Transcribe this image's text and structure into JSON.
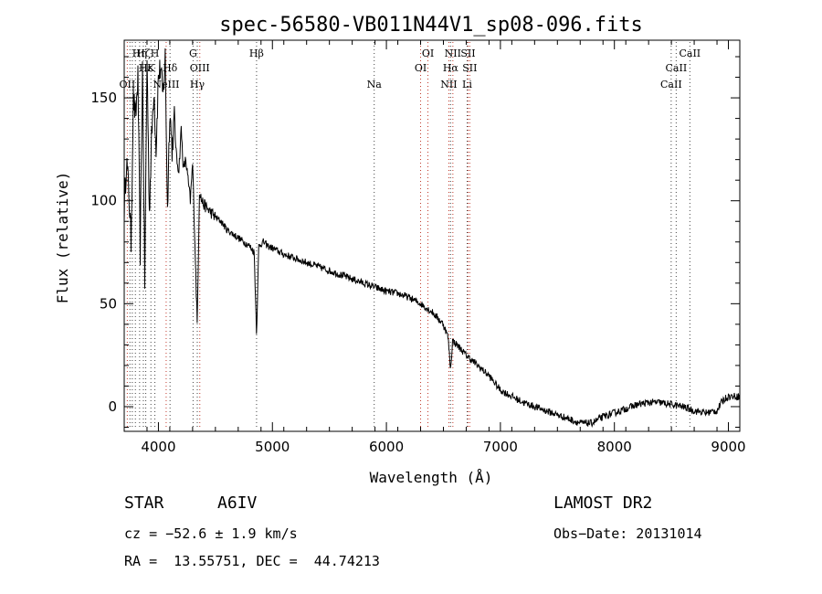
{
  "chart_data": {
    "type": "line",
    "title": "spec-56580-VB011N44V1_sp08-096.fits",
    "xlabel": "Wavelength (Å)",
    "ylabel": "Flux (relative)",
    "xlim": [
      3700,
      9100
    ],
    "ylim": [
      -12,
      178
    ],
    "xticks": [
      4000,
      5000,
      6000,
      7000,
      8000,
      9000
    ],
    "yticks": [
      0,
      50,
      100,
      150
    ],
    "grid": false,
    "line_color": "#000000",
    "marker_color_blue": "#c0392b",
    "spectrum": {
      "x": [
        3700,
        3720,
        3740,
        3760,
        3780,
        3800,
        3820,
        3840,
        3860,
        3880,
        3900,
        3920,
        3940,
        3960,
        3980,
        4000,
        4020,
        4040,
        4060,
        4080,
        4100,
        4120,
        4140,
        4160,
        4180,
        4200,
        4220,
        4240,
        4260,
        4280,
        4300,
        4320,
        4340,
        4360,
        4380,
        4400,
        4450,
        4500,
        4550,
        4600,
        4650,
        4700,
        4750,
        4800,
        4840,
        4861,
        4880,
        4920,
        4960,
        5000,
        5100,
        5200,
        5300,
        5400,
        5500,
        5600,
        5700,
        5800,
        5900,
        6000,
        6100,
        6200,
        6300,
        6400,
        6500,
        6540,
        6563,
        6580,
        6620,
        6700,
        6800,
        6900,
        7000,
        7100,
        7200,
        7300,
        7400,
        7500,
        7600,
        7700,
        7800,
        7900,
        8000,
        8100,
        8200,
        8300,
        8400,
        8500,
        8600,
        8700,
        8800,
        8900,
        8950,
        9000
      ],
      "y": [
        95,
        120,
        105,
        80,
        150,
        140,
        160,
        75,
        165,
        60,
        170,
        95,
        130,
        155,
        125,
        160,
        165,
        150,
        170,
        95,
        145,
        125,
        140,
        120,
        115,
        135,
        115,
        120,
        110,
        100,
        118,
        80,
        40,
        105,
        100,
        98,
        95,
        92,
        90,
        86,
        84,
        82,
        80,
        78,
        75,
        35,
        78,
        80,
        78,
        77,
        74,
        72,
        70,
        68,
        66,
        64,
        62,
        60,
        58,
        56,
        55,
        53,
        50,
        46,
        40,
        34,
        18,
        32,
        30,
        25,
        20,
        15,
        8,
        5,
        2,
        0,
        -2,
        -4,
        -6,
        -8,
        -8,
        -5,
        -3,
        -1,
        1,
        2,
        2,
        1,
        0,
        -2,
        -3,
        -2,
        3,
        5
      ]
    },
    "lines": [
      {
        "wavelength": 3727,
        "label": "OII",
        "row": 3,
        "kind": "emission"
      },
      {
        "wavelength": 3750,
        "label": "",
        "row": 0,
        "kind": "absorption"
      },
      {
        "wavelength": 3771,
        "label": "",
        "row": 0,
        "kind": "absorption"
      },
      {
        "wavelength": 3798,
        "label": "",
        "row": 0,
        "kind": "absorption"
      },
      {
        "wavelength": 3835,
        "label": "Hη",
        "row": 1,
        "kind": "absorption"
      },
      {
        "wavelength": 3868,
        "label": "Hζ",
        "row": 1,
        "kind": "absorption"
      },
      {
        "wavelength": 3889,
        "label": "Hε",
        "row": 2,
        "kind": "absorption"
      },
      {
        "wavelength": 3934,
        "label": "K",
        "row": 2,
        "kind": "absorption"
      },
      {
        "wavelength": 3969,
        "label": "H",
        "row": 1,
        "kind": "absorption"
      },
      {
        "wavelength": 4102,
        "label": "Hδ",
        "row": 2,
        "kind": "absorption"
      },
      {
        "wavelength": 4068,
        "label": "NeIII",
        "row": 3,
        "kind": "emission"
      },
      {
        "wavelength": 4304,
        "label": "G",
        "row": 1,
        "kind": "absorption"
      },
      {
        "wavelength": 4341,
        "label": "Hγ",
        "row": 3,
        "kind": "absorption"
      },
      {
        "wavelength": 4363,
        "label": "OIII",
        "row": 2,
        "kind": "emission"
      },
      {
        "wavelength": 4861,
        "label": "Hβ",
        "row": 1,
        "kind": "absorption"
      },
      {
        "wavelength": 5893,
        "label": "Na",
        "row": 3,
        "kind": "absorption"
      },
      {
        "wavelength": 6300,
        "label": "OI",
        "row": 2,
        "kind": "emission"
      },
      {
        "wavelength": 6364,
        "label": "OI",
        "row": 1,
        "kind": "emission"
      },
      {
        "wavelength": 6548,
        "label": "NII",
        "row": 3,
        "kind": "emission"
      },
      {
        "wavelength": 6563,
        "label": "Hα",
        "row": 2,
        "kind": "absorption"
      },
      {
        "wavelength": 6583,
        "label": "NII",
        "row": 1,
        "kind": "emission"
      },
      {
        "wavelength": 6708,
        "label": "Li",
        "row": 3,
        "kind": "absorption"
      },
      {
        "wavelength": 6716,
        "label": "SII",
        "row": 1,
        "kind": "emission"
      },
      {
        "wavelength": 6731,
        "label": "SII",
        "row": 2,
        "kind": "emission"
      },
      {
        "wavelength": 8498,
        "label": "CaII",
        "row": 3,
        "kind": "absorption"
      },
      {
        "wavelength": 8542,
        "label": "CaII",
        "row": 2,
        "kind": "absorption"
      },
      {
        "wavelength": 8662,
        "label": "CaII",
        "row": 1,
        "kind": "absorption"
      }
    ]
  },
  "info": {
    "object_type": "STAR",
    "subclass": "A6IV",
    "survey": "LAMOST DR2",
    "cz": "cz = −52.6 ± 1.9 km/s",
    "obs_date": "Obs−Date: 20131014",
    "coords": "RA =  13.55751, DEC =  44.74213"
  }
}
